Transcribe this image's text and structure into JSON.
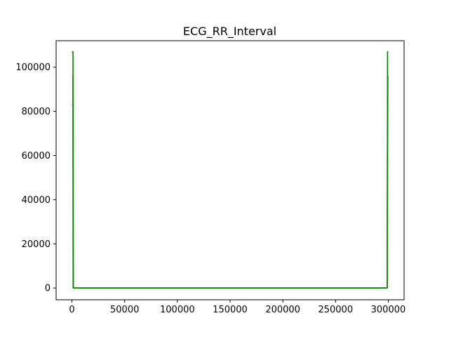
{
  "chart_data": {
    "type": "line",
    "title": "ECG_RR_Interval",
    "xlabel": "",
    "ylabel": "",
    "xlim": [
      -15000,
      315000
    ],
    "ylim": [
      -5350,
      112000
    ],
    "grid": false,
    "legend": "none",
    "x_ticks": [
      0,
      50000,
      100000,
      150000,
      200000,
      250000,
      300000
    ],
    "x_tick_labels": [
      "0",
      "50000",
      "100000",
      "150000",
      "200000",
      "250000",
      "300000"
    ],
    "y_ticks": [
      0,
      20000,
      40000,
      60000,
      80000,
      100000
    ],
    "y_tick_labels": [
      "0",
      "20000",
      "40000",
      "60000",
      "80000",
      "100000"
    ],
    "series": [
      {
        "color": "#1f3a93",
        "x": [
          0,
          1000,
          1200,
          2000,
          298500,
          299000,
          299300,
          300200
        ],
        "y": [
          83000,
          83000,
          0,
          0,
          0,
          0,
          83000,
          83000
        ]
      },
      {
        "color": "#d4a017",
        "x": [
          0,
          800,
          1000,
          2000,
          299000,
          299800,
          300000
        ],
        "y": [
          96000,
          96000,
          0,
          0,
          0,
          96000,
          96000
        ]
      },
      {
        "color": "#008000",
        "x": [
          0,
          1000,
          1300,
          2000,
          298500,
          299000,
          299300,
          300000
        ],
        "y": [
          107000,
          107000,
          0,
          0,
          0,
          0,
          107000,
          107000
        ]
      }
    ]
  }
}
